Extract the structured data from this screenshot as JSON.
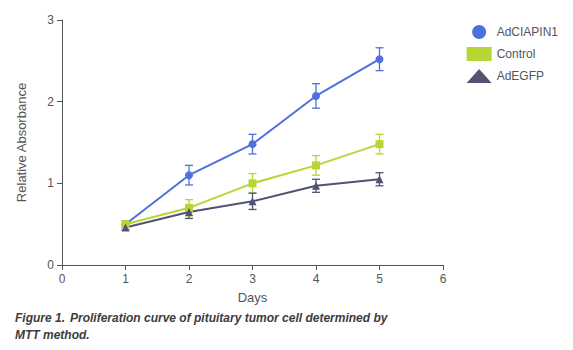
{
  "chart_data": {
    "type": "line",
    "x": [
      1,
      2,
      3,
      4,
      5
    ],
    "series": [
      {
        "name": "AdCIAPIN1",
        "marker": "circle",
        "values": [
          0.5,
          1.1,
          1.48,
          2.07,
          2.52
        ],
        "errors": [
          0.04,
          0.12,
          0.12,
          0.15,
          0.14
        ]
      },
      {
        "name": "Control",
        "marker": "square",
        "values": [
          0.5,
          0.7,
          1.0,
          1.22,
          1.48
        ],
        "errors": [
          0.04,
          0.1,
          0.12,
          0.12,
          0.12
        ]
      },
      {
        "name": "AdEGFP",
        "marker": "triangle",
        "values": [
          0.46,
          0.65,
          0.78,
          0.97,
          1.05
        ],
        "errors": [
          0.03,
          0.08,
          0.1,
          0.08,
          0.08
        ]
      }
    ],
    "xlabel": "Days",
    "ylabel": "Relative Absorbance",
    "xlim": [
      0,
      6
    ],
    "ylim": [
      0,
      3
    ],
    "xticks": [
      0,
      1,
      2,
      3,
      4,
      5,
      6
    ],
    "yticks": [
      0,
      1,
      2,
      3
    ],
    "grid": false,
    "legend": "upper right",
    "annotations": [
      "Figure 1.",
      "Proliferation curve of pituitary tumor cell determined by\nMTT method."
    ]
  }
}
